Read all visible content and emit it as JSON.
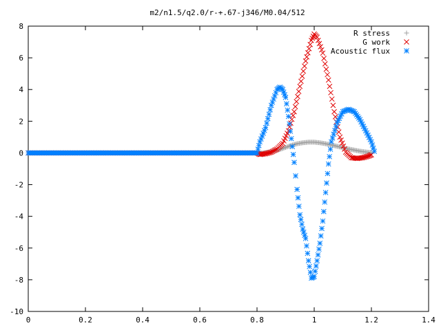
{
  "chart_data": {
    "type": "scatter",
    "title": "m2/n1.5/q2.0/r-+.67-j346/M0.04/512",
    "xlabel": "",
    "ylabel": "",
    "xlim": [
      0,
      1.4
    ],
    "ylim": [
      -10,
      8
    ],
    "x_ticks": [
      "0",
      "0.2",
      "0.4",
      "0.6",
      "0.8",
      "1",
      "1.2",
      "1.4"
    ],
    "y_ticks": [
      "8",
      "6",
      "4",
      "2",
      "0",
      "-2",
      "-4",
      "-6",
      "-8",
      "-10"
    ],
    "grid": false,
    "legend_position": "top-right",
    "series": [
      {
        "name": "R stress",
        "marker": "plus",
        "color": "#a0a0a0",
        "points": [
          [
            0.0,
            0.0
          ],
          [
            0.8,
            0.0
          ],
          [
            0.82,
            0.0
          ],
          [
            0.84,
            0.05
          ],
          [
            0.86,
            0.12
          ],
          [
            0.88,
            0.22
          ],
          [
            0.9,
            0.35
          ],
          [
            0.92,
            0.48
          ],
          [
            0.94,
            0.58
          ],
          [
            0.96,
            0.64
          ],
          [
            0.98,
            0.68
          ],
          [
            1.0,
            0.68
          ],
          [
            1.02,
            0.64
          ],
          [
            1.04,
            0.58
          ],
          [
            1.06,
            0.5
          ],
          [
            1.08,
            0.42
          ],
          [
            1.1,
            0.33
          ],
          [
            1.12,
            0.25
          ],
          [
            1.14,
            0.18
          ],
          [
            1.16,
            0.11
          ],
          [
            1.18,
            0.06
          ],
          [
            1.2,
            0.02
          ]
        ]
      },
      {
        "name": "G work",
        "marker": "cross",
        "color": "#e00000",
        "points": [
          [
            0.0,
            0.0
          ],
          [
            0.8,
            0.0
          ],
          [
            0.81,
            -0.1
          ],
          [
            0.83,
            -0.05
          ],
          [
            0.85,
            0.05
          ],
          [
            0.87,
            0.25
          ],
          [
            0.89,
            0.6
          ],
          [
            0.91,
            1.4
          ],
          [
            0.93,
            2.6
          ],
          [
            0.95,
            4.2
          ],
          [
            0.97,
            5.8
          ],
          [
            0.99,
            7.1
          ],
          [
            1.0,
            7.5
          ],
          [
            1.01,
            7.3
          ],
          [
            1.03,
            6.3
          ],
          [
            1.05,
            4.6
          ],
          [
            1.07,
            2.6
          ],
          [
            1.09,
            1.0
          ],
          [
            1.11,
            0.05
          ],
          [
            1.13,
            -0.3
          ],
          [
            1.15,
            -0.35
          ],
          [
            1.17,
            -0.3
          ],
          [
            1.19,
            -0.2
          ],
          [
            1.2,
            -0.12
          ]
        ]
      },
      {
        "name": "Acoustic flux",
        "marker": "star",
        "color": "#0080ff",
        "points": [
          [
            0.0,
            0.0
          ],
          [
            0.8,
            0.0
          ],
          [
            0.81,
            0.7
          ],
          [
            0.83,
            1.6
          ],
          [
            0.85,
            3.0
          ],
          [
            0.87,
            4.0
          ],
          [
            0.88,
            4.15
          ],
          [
            0.89,
            4.0
          ],
          [
            0.9,
            3.5
          ],
          [
            0.91,
            2.3
          ],
          [
            0.92,
            0.9
          ],
          [
            0.93,
            -0.6
          ],
          [
            0.94,
            -2.3
          ],
          [
            0.95,
            -3.9
          ],
          [
            0.96,
            -4.8
          ],
          [
            0.97,
            -5.4
          ],
          [
            0.98,
            -6.8
          ],
          [
            0.99,
            -7.9
          ],
          [
            1.0,
            -7.8
          ],
          [
            1.01,
            -6.8
          ],
          [
            1.02,
            -5.7
          ],
          [
            1.03,
            -4.3
          ],
          [
            1.04,
            -2.5
          ],
          [
            1.05,
            -0.7
          ],
          [
            1.06,
            0.7
          ],
          [
            1.08,
            1.9
          ],
          [
            1.1,
            2.6
          ],
          [
            1.12,
            2.75
          ],
          [
            1.14,
            2.6
          ],
          [
            1.16,
            2.1
          ],
          [
            1.18,
            1.4
          ],
          [
            1.2,
            0.7
          ],
          [
            1.21,
            0.1
          ]
        ]
      }
    ]
  }
}
